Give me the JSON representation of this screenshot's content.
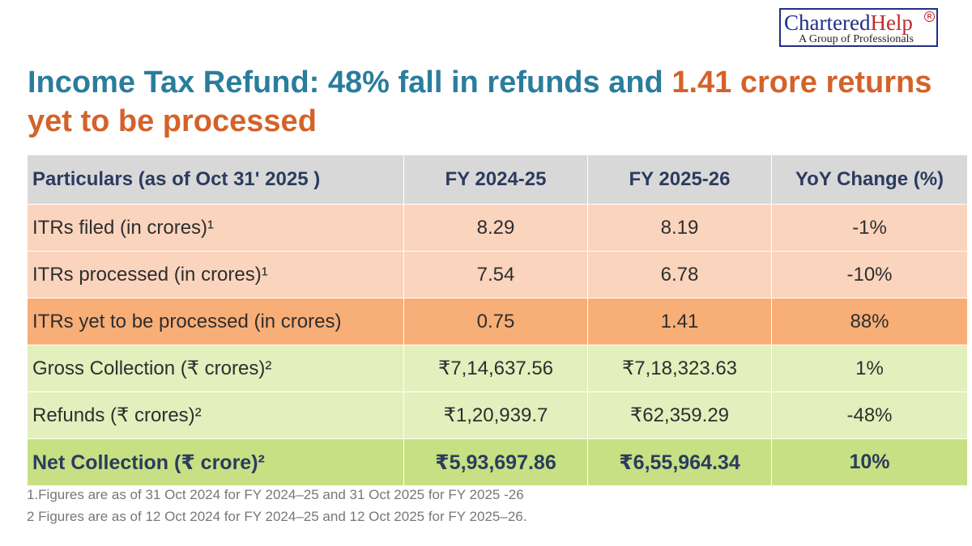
{
  "logo": {
    "name_a": "Chartered",
    "name_b": "Help",
    "reg": "R",
    "tagline": "A Group of Professionals"
  },
  "title": {
    "part1": "Income Tax Refund: 48% fall in refunds and ",
    "highlight": "1.41 crore returns yet to be processed"
  },
  "table": {
    "headers": [
      "Particulars (as of Oct 31' 2025 )",
      "FY 2024-25",
      "FY 2025-26",
      "YoY Change (%)"
    ],
    "rows": [
      [
        "ITRs filed (in crores)¹",
        "8.29",
        "8.19",
        "-1%"
      ],
      [
        "ITRs processed (in crores)¹",
        "7.54",
        "6.78",
        "-10%"
      ],
      [
        "ITRs yet to be processed (in crores)",
        "0.75",
        "1.41",
        "88%"
      ],
      [
        "Gross Collection (₹ crores)²",
        "₹7,14,637.56",
        "₹7,18,323.63",
        "1%"
      ],
      [
        "Refunds (₹ crores)²",
        "₹1,20,939.7",
        "₹62,359.29",
        "-48%"
      ],
      [
        "Net Collection (₹ crore)²",
        "₹5,93,697.86",
        "₹6,55,964.34",
        "10%"
      ]
    ]
  },
  "notes": [
    "1.Figures are as of 31 Oct 2024 for FY 2024–25 and 31 Oct 2025 for FY 2025 -26",
    "2 Figures are as of 12 Oct 2024 for FY 2024–25 and 12 Oct 2025 for FY 2025–26."
  ],
  "colors": {
    "title": "#2a7d9c",
    "highlight": "#d4622a",
    "header_bg": "#d8d8d8",
    "peach": "#fad4bd",
    "orange": "#f8ae77",
    "light_green": "#e3efbd",
    "green": "#c6e083"
  }
}
